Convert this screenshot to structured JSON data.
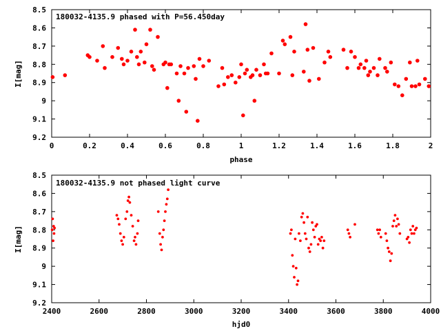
{
  "chart_data": [
    {
      "type": "scatter",
      "title": "180032-4135.9 phased with P=56.450day",
      "xlabel": "phase",
      "ylabel": "I[mag]",
      "xlim": [
        0,
        2
      ],
      "ylim": [
        8.5,
        9.2
      ],
      "y_inverted": true,
      "xticks": [
        "0",
        "0.2",
        "0.4",
        "0.6",
        "0.8",
        "1",
        "1.2",
        "1.4",
        "1.6",
        "1.8",
        "2"
      ],
      "xtick_values": [
        0,
        0.2,
        0.4,
        0.6,
        0.8,
        1,
        1.2,
        1.4,
        1.6,
        1.8,
        2
      ],
      "yticks": [
        "8.5",
        "8.6",
        "8.7",
        "8.8",
        "8.9",
        "9",
        "9.1",
        "9.2"
      ],
      "ytick_values": [
        8.5,
        8.6,
        8.7,
        8.8,
        8.9,
        9.0,
        9.1,
        9.2
      ],
      "grid": false,
      "color": "#ff0000",
      "x": [
        0.005,
        0.07,
        0.19,
        0.2,
        0.24,
        0.27,
        0.28,
        0.32,
        0.35,
        0.37,
        0.38,
        0.4,
        0.42,
        0.44,
        0.45,
        0.46,
        0.47,
        0.49,
        0.5,
        0.52,
        0.53,
        0.54,
        0.56,
        0.59,
        0.6,
        0.61,
        0.62,
        0.63,
        0.66,
        0.67,
        0.68,
        0.7,
        0.71,
        0.72,
        0.75,
        0.76,
        0.77,
        0.78,
        0.8,
        0.83,
        0.88,
        0.9,
        0.91,
        0.93,
        0.95,
        0.97,
        0.99,
        1.0,
        1.01,
        1.02,
        1.03,
        1.05,
        1.06,
        1.07,
        1.08,
        1.1,
        1.12,
        1.13,
        1.14,
        1.16,
        1.2,
        1.22,
        1.23,
        1.26,
        1.27,
        1.28,
        1.33,
        1.34,
        1.35,
        1.36,
        1.38,
        1.41,
        1.44,
        1.46,
        1.47,
        1.54,
        1.56,
        1.58,
        1.6,
        1.62,
        1.63,
        1.65,
        1.66,
        1.67,
        1.68,
        1.7,
        1.72,
        1.73,
        1.76,
        1.77,
        1.79,
        1.81,
        1.83,
        1.85,
        1.87,
        1.89,
        1.9,
        1.92,
        1.93,
        1.94,
        1.97,
        1.99
      ],
      "y": [
        8.87,
        8.86,
        8.75,
        8.76,
        8.78,
        8.7,
        8.82,
        8.76,
        8.71,
        8.77,
        8.8,
        8.78,
        8.73,
        8.61,
        8.76,
        8.8,
        8.73,
        8.79,
        8.69,
        8.61,
        8.81,
        8.83,
        8.65,
        8.8,
        8.79,
        8.93,
        8.8,
        8.8,
        8.85,
        9.0,
        8.81,
        8.85,
        9.06,
        8.82,
        8.81,
        8.88,
        9.11,
        8.77,
        8.81,
        8.78,
        8.92,
        8.82,
        8.91,
        8.87,
        8.86,
        8.9,
        8.87,
        8.8,
        9.08,
        8.85,
        8.83,
        8.87,
        8.86,
        9.0,
        8.83,
        8.86,
        8.8,
        8.85,
        8.85,
        8.74,
        8.85,
        8.67,
        8.69,
        8.65,
        8.86,
        8.73,
        8.84,
        8.58,
        8.72,
        8.89,
        8.71,
        8.88,
        8.79,
        8.73,
        8.76,
        8.72,
        8.82,
        8.73,
        8.76,
        8.82,
        8.8,
        8.82,
        8.78,
        8.86,
        8.84,
        8.82,
        8.86,
        8.77,
        8.82,
        8.84,
        8.79,
        8.91,
        8.92,
        8.97,
        8.88,
        8.79,
        8.92,
        8.92,
        8.78,
        8.91,
        8.88,
        8.92
      ]
    },
    {
      "type": "scatter",
      "title": "180032-4135.9 not phased light curve",
      "xlabel": "hjd0",
      "ylabel": "I[mag]",
      "xlim": [
        2400,
        4000
      ],
      "ylim": [
        8.5,
        9.2
      ],
      "y_inverted": true,
      "xticks": [
        "2400",
        "2600",
        "2800",
        "3000",
        "3200",
        "3400",
        "3600",
        "3800",
        "4000"
      ],
      "xtick_values": [
        2400,
        2600,
        2800,
        3000,
        3200,
        3400,
        3600,
        3800,
        4000
      ],
      "yticks": [
        "8.5",
        "8.6",
        "8.7",
        "8.8",
        "8.9",
        "9",
        "9.1",
        "9.2"
      ],
      "ytick_values": [
        8.5,
        8.6,
        8.7,
        8.8,
        8.9,
        9.0,
        9.1,
        9.2
      ],
      "grid": false,
      "color": "#ff0000",
      "x": [
        2402,
        2404,
        2406,
        2408,
        2410,
        2412,
        2675,
        2680,
        2685,
        2690,
        2695,
        2700,
        2705,
        2712,
        2718,
        2722,
        2726,
        2730,
        2736,
        2742,
        2748,
        2752,
        2756,
        2762,
        2765,
        2850,
        2856,
        2860,
        2864,
        2868,
        2872,
        2876,
        2880,
        2884,
        2888,
        2892,
        3408,
        3412,
        3416,
        3420,
        3424,
        3428,
        3432,
        3436,
        3440,
        3444,
        3450,
        3455,
        3460,
        3465,
        3470,
        3475,
        3480,
        3485,
        3490,
        3495,
        3500,
        3505,
        3510,
        3515,
        3520,
        3525,
        3530,
        3535,
        3540,
        3545,
        3550,
        3650,
        3655,
        3660,
        3680,
        3775,
        3780,
        3785,
        3790,
        3810,
        3815,
        3820,
        3825,
        3830,
        3835,
        3840,
        3845,
        3850,
        3855,
        3860,
        3865,
        3870,
        3900,
        3905,
        3910,
        3915,
        3920,
        3925,
        3930,
        3935,
        3940
      ],
      "y": [
        8.8,
        8.74,
        8.86,
        8.78,
        8.82,
        8.79,
        8.72,
        8.74,
        8.77,
        8.82,
        8.86,
        8.88,
        8.84,
        8.74,
        8.7,
        8.64,
        8.62,
        8.65,
        8.72,
        8.78,
        8.86,
        8.84,
        8.88,
        8.82,
        8.75,
        8.7,
        8.82,
        8.88,
        8.91,
        8.84,
        8.8,
        8.75,
        8.7,
        8.66,
        8.63,
        8.58,
        8.82,
        8.8,
        8.94,
        9.0,
        9.06,
        8.85,
        9.01,
        9.1,
        9.08,
        8.82,
        8.86,
        8.73,
        8.71,
        8.76,
        8.82,
        8.85,
        8.73,
        8.9,
        8.92,
        8.88,
        8.76,
        8.8,
        8.84,
        8.78,
        8.77,
        8.88,
        8.85,
        8.86,
        8.84,
        8.9,
        8.86,
        8.8,
        8.82,
        8.84,
        8.77,
        8.8,
        8.82,
        8.8,
        8.84,
        8.82,
        8.86,
        8.9,
        8.92,
        8.97,
        8.93,
        8.78,
        8.75,
        8.72,
        8.78,
        8.74,
        8.77,
        8.82,
        8.85,
        8.84,
        8.87,
        8.8,
        8.82,
        8.78,
        8.82,
        8.8,
        8.79
      ]
    }
  ]
}
